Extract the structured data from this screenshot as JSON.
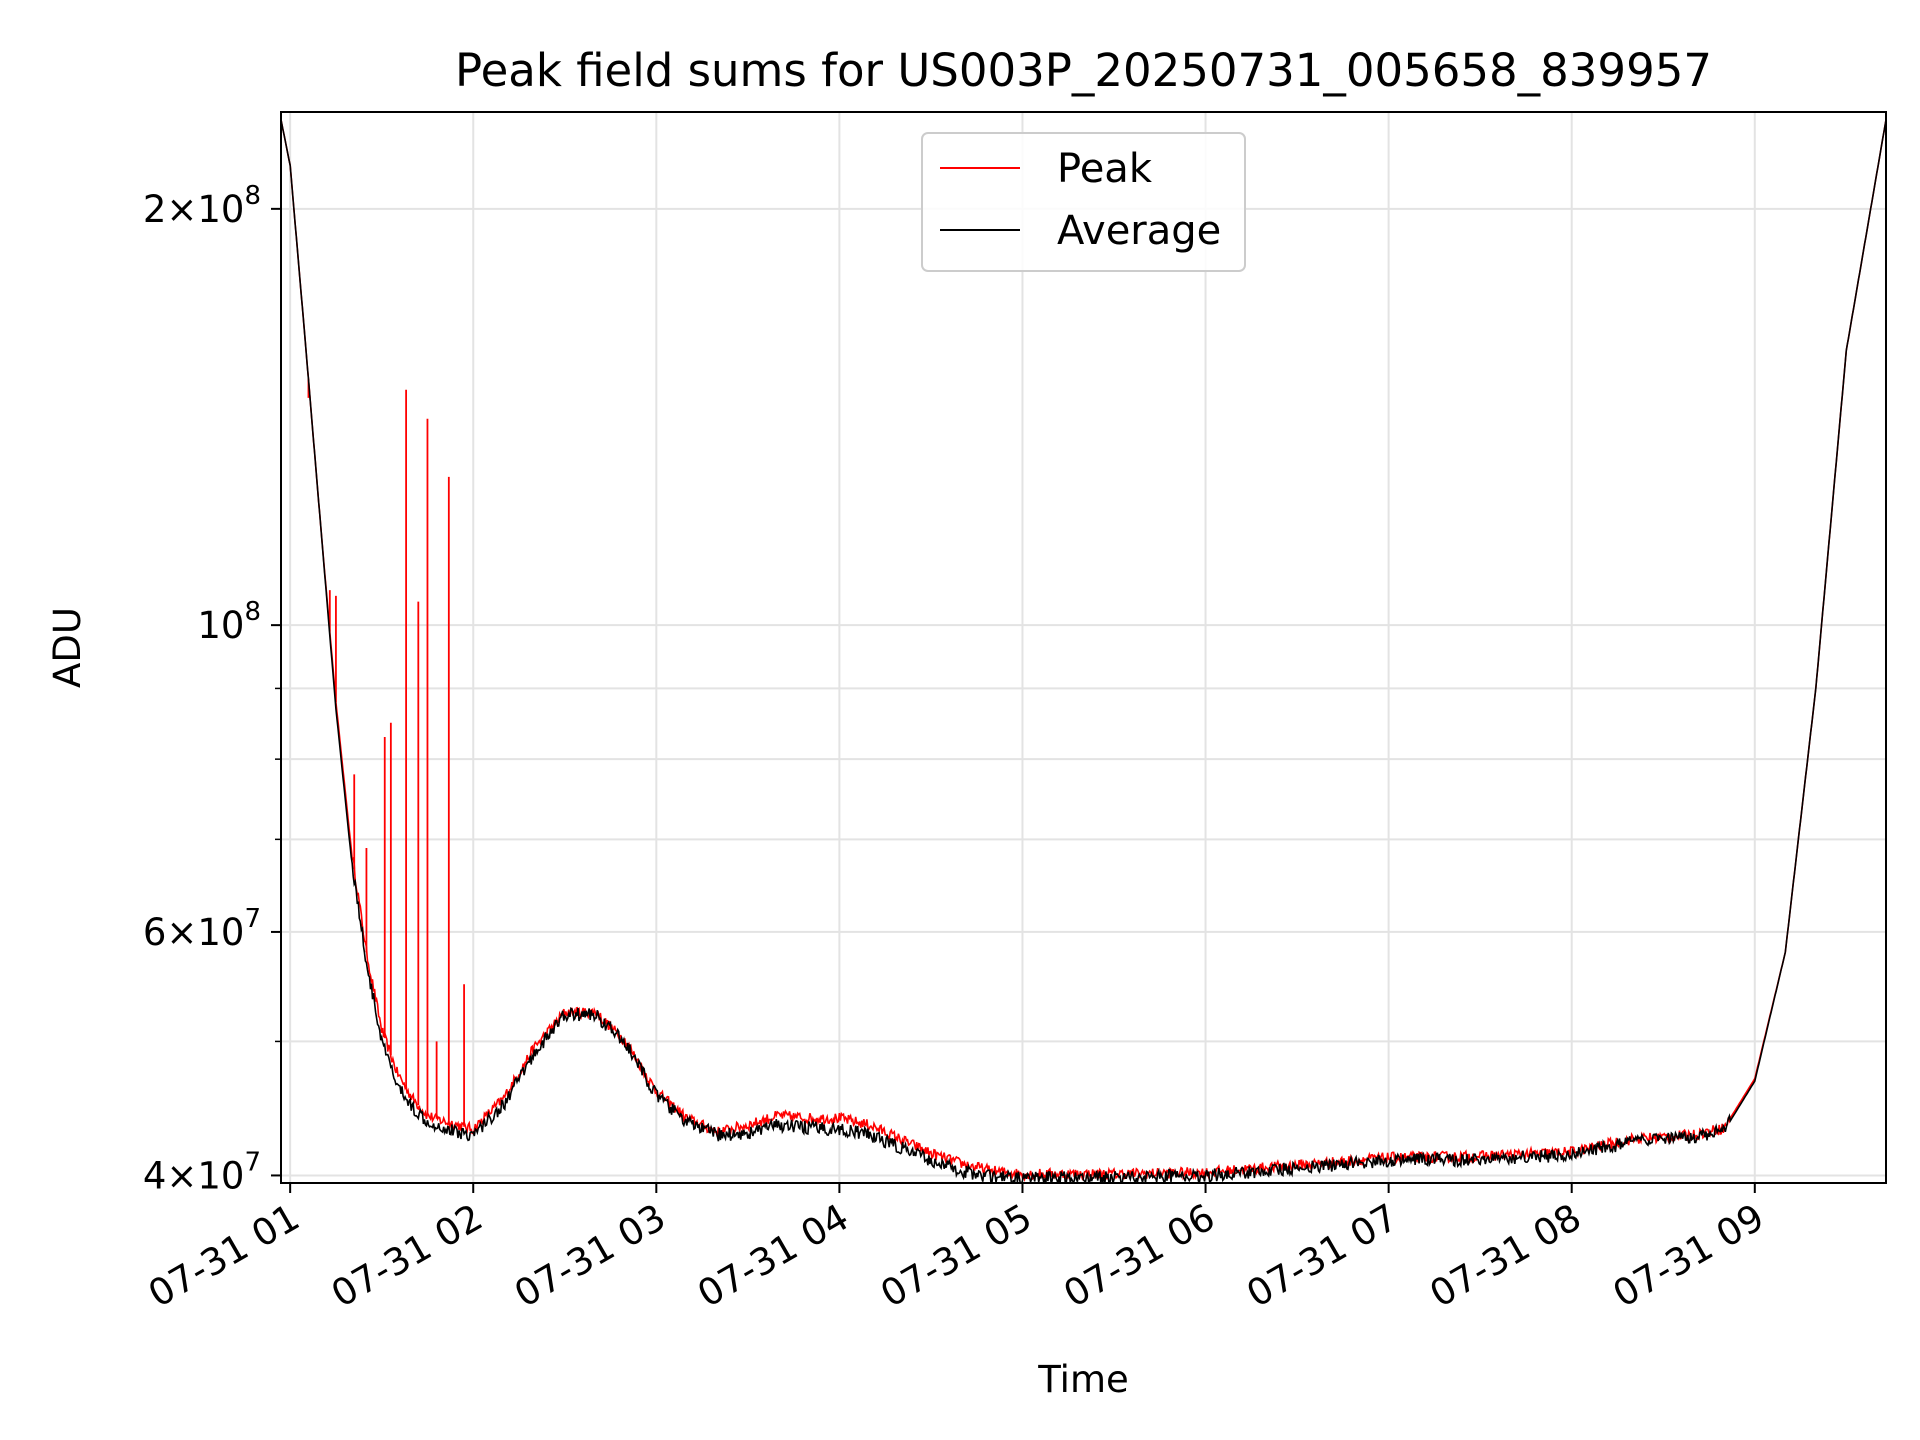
{
  "chart_data": {
    "type": "line",
    "title": "Peak field sums for US003P_20250731_005658_839957",
    "xlabel": "Time",
    "ylabel": "ADU",
    "yscale": "log",
    "grid": true,
    "legend_position": "top-center",
    "x_tick_labels": [
      "07-31 01",
      "07-31 02",
      "07-31 03",
      "07-31 04",
      "07-31 05",
      "07-31 06",
      "07-31 07",
      "07-31 08",
      "07-31 09"
    ],
    "x_ticks": [
      "2025-07-31 01:00",
      "2025-07-31 02:00",
      "2025-07-31 03:00",
      "2025-07-31 04:00",
      "2025-07-31 05:00",
      "2025-07-31 06:00",
      "2025-07-31 07:00",
      "2025-07-31 08:00",
      "2025-07-31 09:00"
    ],
    "xlim": [
      "2025-07-31 00:57",
      "2025-07-31 09:43"
    ],
    "y_ticks": [
      {
        "value": 40000000,
        "base": "4×10",
        "exp": "7"
      },
      {
        "value": 60000000,
        "base": "6×10",
        "exp": "7"
      },
      {
        "value": 100000000,
        "base": "10",
        "exp": "8"
      },
      {
        "value": 200000000,
        "base": "2×10",
        "exp": "8"
      }
    ],
    "ylim": [
      39500000,
      235000000
    ],
    "series": [
      {
        "name": "Peak",
        "color": "#ff0000",
        "x": [
          "2025-07-31 00:57",
          "2025-07-31 01:00",
          "2025-07-31 01:05",
          "2025-07-31 01:10",
          "2025-07-31 01:15",
          "2025-07-31 01:20",
          "2025-07-31 01:25",
          "2025-07-31 01:30",
          "2025-07-31 01:35",
          "2025-07-31 01:40",
          "2025-07-31 01:45",
          "2025-07-31 01:50",
          "2025-07-31 01:55",
          "2025-07-31 02:00",
          "2025-07-31 02:10",
          "2025-07-31 02:20",
          "2025-07-31 02:30",
          "2025-07-31 02:40",
          "2025-07-31 02:50",
          "2025-07-31 03:00",
          "2025-07-31 03:10",
          "2025-07-31 03:20",
          "2025-07-31 03:30",
          "2025-07-31 03:40",
          "2025-07-31 03:50",
          "2025-07-31 04:00",
          "2025-07-31 04:10",
          "2025-07-31 04:20",
          "2025-07-31 04:30",
          "2025-07-31 04:40",
          "2025-07-31 04:50",
          "2025-07-31 05:00",
          "2025-07-31 05:30",
          "2025-07-31 06:00",
          "2025-07-31 06:30",
          "2025-07-31 07:00",
          "2025-07-31 07:30",
          "2025-07-31 08:00",
          "2025-07-31 08:20",
          "2025-07-31 08:40",
          "2025-07-31 08:50",
          "2025-07-31 09:00",
          "2025-07-31 09:10",
          "2025-07-31 09:20",
          "2025-07-31 09:30",
          "2025-07-31 09:43"
        ],
        "y": [
          232000000,
          215000000,
          160000000,
          118000000,
          88000000,
          69000000,
          58000000,
          51000000,
          47500000,
          45500000,
          44200000,
          43800000,
          43500000,
          43200000,
          45500000,
          49500000,
          52500000,
          52500000,
          50000000,
          46000000,
          44000000,
          43000000,
          43500000,
          44200000,
          44000000,
          44000000,
          43500000,
          42500000,
          41500000,
          40800000,
          40300000,
          40100000,
          40100000,
          40200000,
          40700000,
          41200000,
          41300000,
          41600000,
          42500000,
          42800000,
          43300000,
          47000000,
          58000000,
          90000000,
          158000000,
          232000000
        ],
        "spikes": [
          {
            "x": "2025-07-31 01:06",
            "y": 146000000
          },
          {
            "x": "2025-07-31 01:13",
            "y": 106000000
          },
          {
            "x": "2025-07-31 01:15",
            "y": 105000000
          },
          {
            "x": "2025-07-31 01:21",
            "y": 78000000
          },
          {
            "x": "2025-07-31 01:25",
            "y": 69000000
          },
          {
            "x": "2025-07-31 01:31",
            "y": 83000000
          },
          {
            "x": "2025-07-31 01:33",
            "y": 85000000
          },
          {
            "x": "2025-07-31 01:38",
            "y": 148000000
          },
          {
            "x": "2025-07-31 01:42",
            "y": 104000000
          },
          {
            "x": "2025-07-31 01:45",
            "y": 141000000
          },
          {
            "x": "2025-07-31 01:48",
            "y": 50000000
          },
          {
            "x": "2025-07-31 01:52",
            "y": 128000000
          },
          {
            "x": "2025-07-31 01:57",
            "y": 55000000
          }
        ]
      },
      {
        "name": "Average",
        "color": "#000000",
        "x": [
          "2025-07-31 00:57",
          "2025-07-31 01:00",
          "2025-07-31 01:05",
          "2025-07-31 01:10",
          "2025-07-31 01:15",
          "2025-07-31 01:20",
          "2025-07-31 01:25",
          "2025-07-31 01:30",
          "2025-07-31 01:35",
          "2025-07-31 01:40",
          "2025-07-31 01:45",
          "2025-07-31 01:50",
          "2025-07-31 01:55",
          "2025-07-31 02:00",
          "2025-07-31 02:10",
          "2025-07-31 02:20",
          "2025-07-31 02:30",
          "2025-07-31 02:40",
          "2025-07-31 02:50",
          "2025-07-31 03:00",
          "2025-07-31 03:10",
          "2025-07-31 03:20",
          "2025-07-31 03:30",
          "2025-07-31 03:40",
          "2025-07-31 03:50",
          "2025-07-31 04:00",
          "2025-07-31 04:10",
          "2025-07-31 04:20",
          "2025-07-31 04:30",
          "2025-07-31 04:40",
          "2025-07-31 04:50",
          "2025-07-31 05:00",
          "2025-07-31 05:30",
          "2025-07-31 06:00",
          "2025-07-31 06:30",
          "2025-07-31 07:00",
          "2025-07-31 07:30",
          "2025-07-31 08:00",
          "2025-07-31 08:20",
          "2025-07-31 08:40",
          "2025-07-31 08:50",
          "2025-07-31 09:00",
          "2025-07-31 09:10",
          "2025-07-31 09:20",
          "2025-07-31 09:30",
          "2025-07-31 09:43"
        ],
        "y": [
          232000000,
          215000000,
          160000000,
          118000000,
          87000000,
          68000000,
          57000000,
          50000000,
          46500000,
          44800000,
          43800000,
          43300000,
          43000000,
          42800000,
          45000000,
          49000000,
          52300000,
          52300000,
          49800000,
          45700000,
          43700000,
          42800000,
          42900000,
          43500000,
          43300000,
          43200000,
          42800000,
          41900000,
          41000000,
          40300000,
          39900000,
          39800000,
          39900000,
          40000000,
          40500000,
          41000000,
          41100000,
          41400000,
          42300000,
          42600000,
          43100000,
          46800000,
          58000000,
          90000000,
          158000000,
          232000000
        ]
      }
    ]
  }
}
